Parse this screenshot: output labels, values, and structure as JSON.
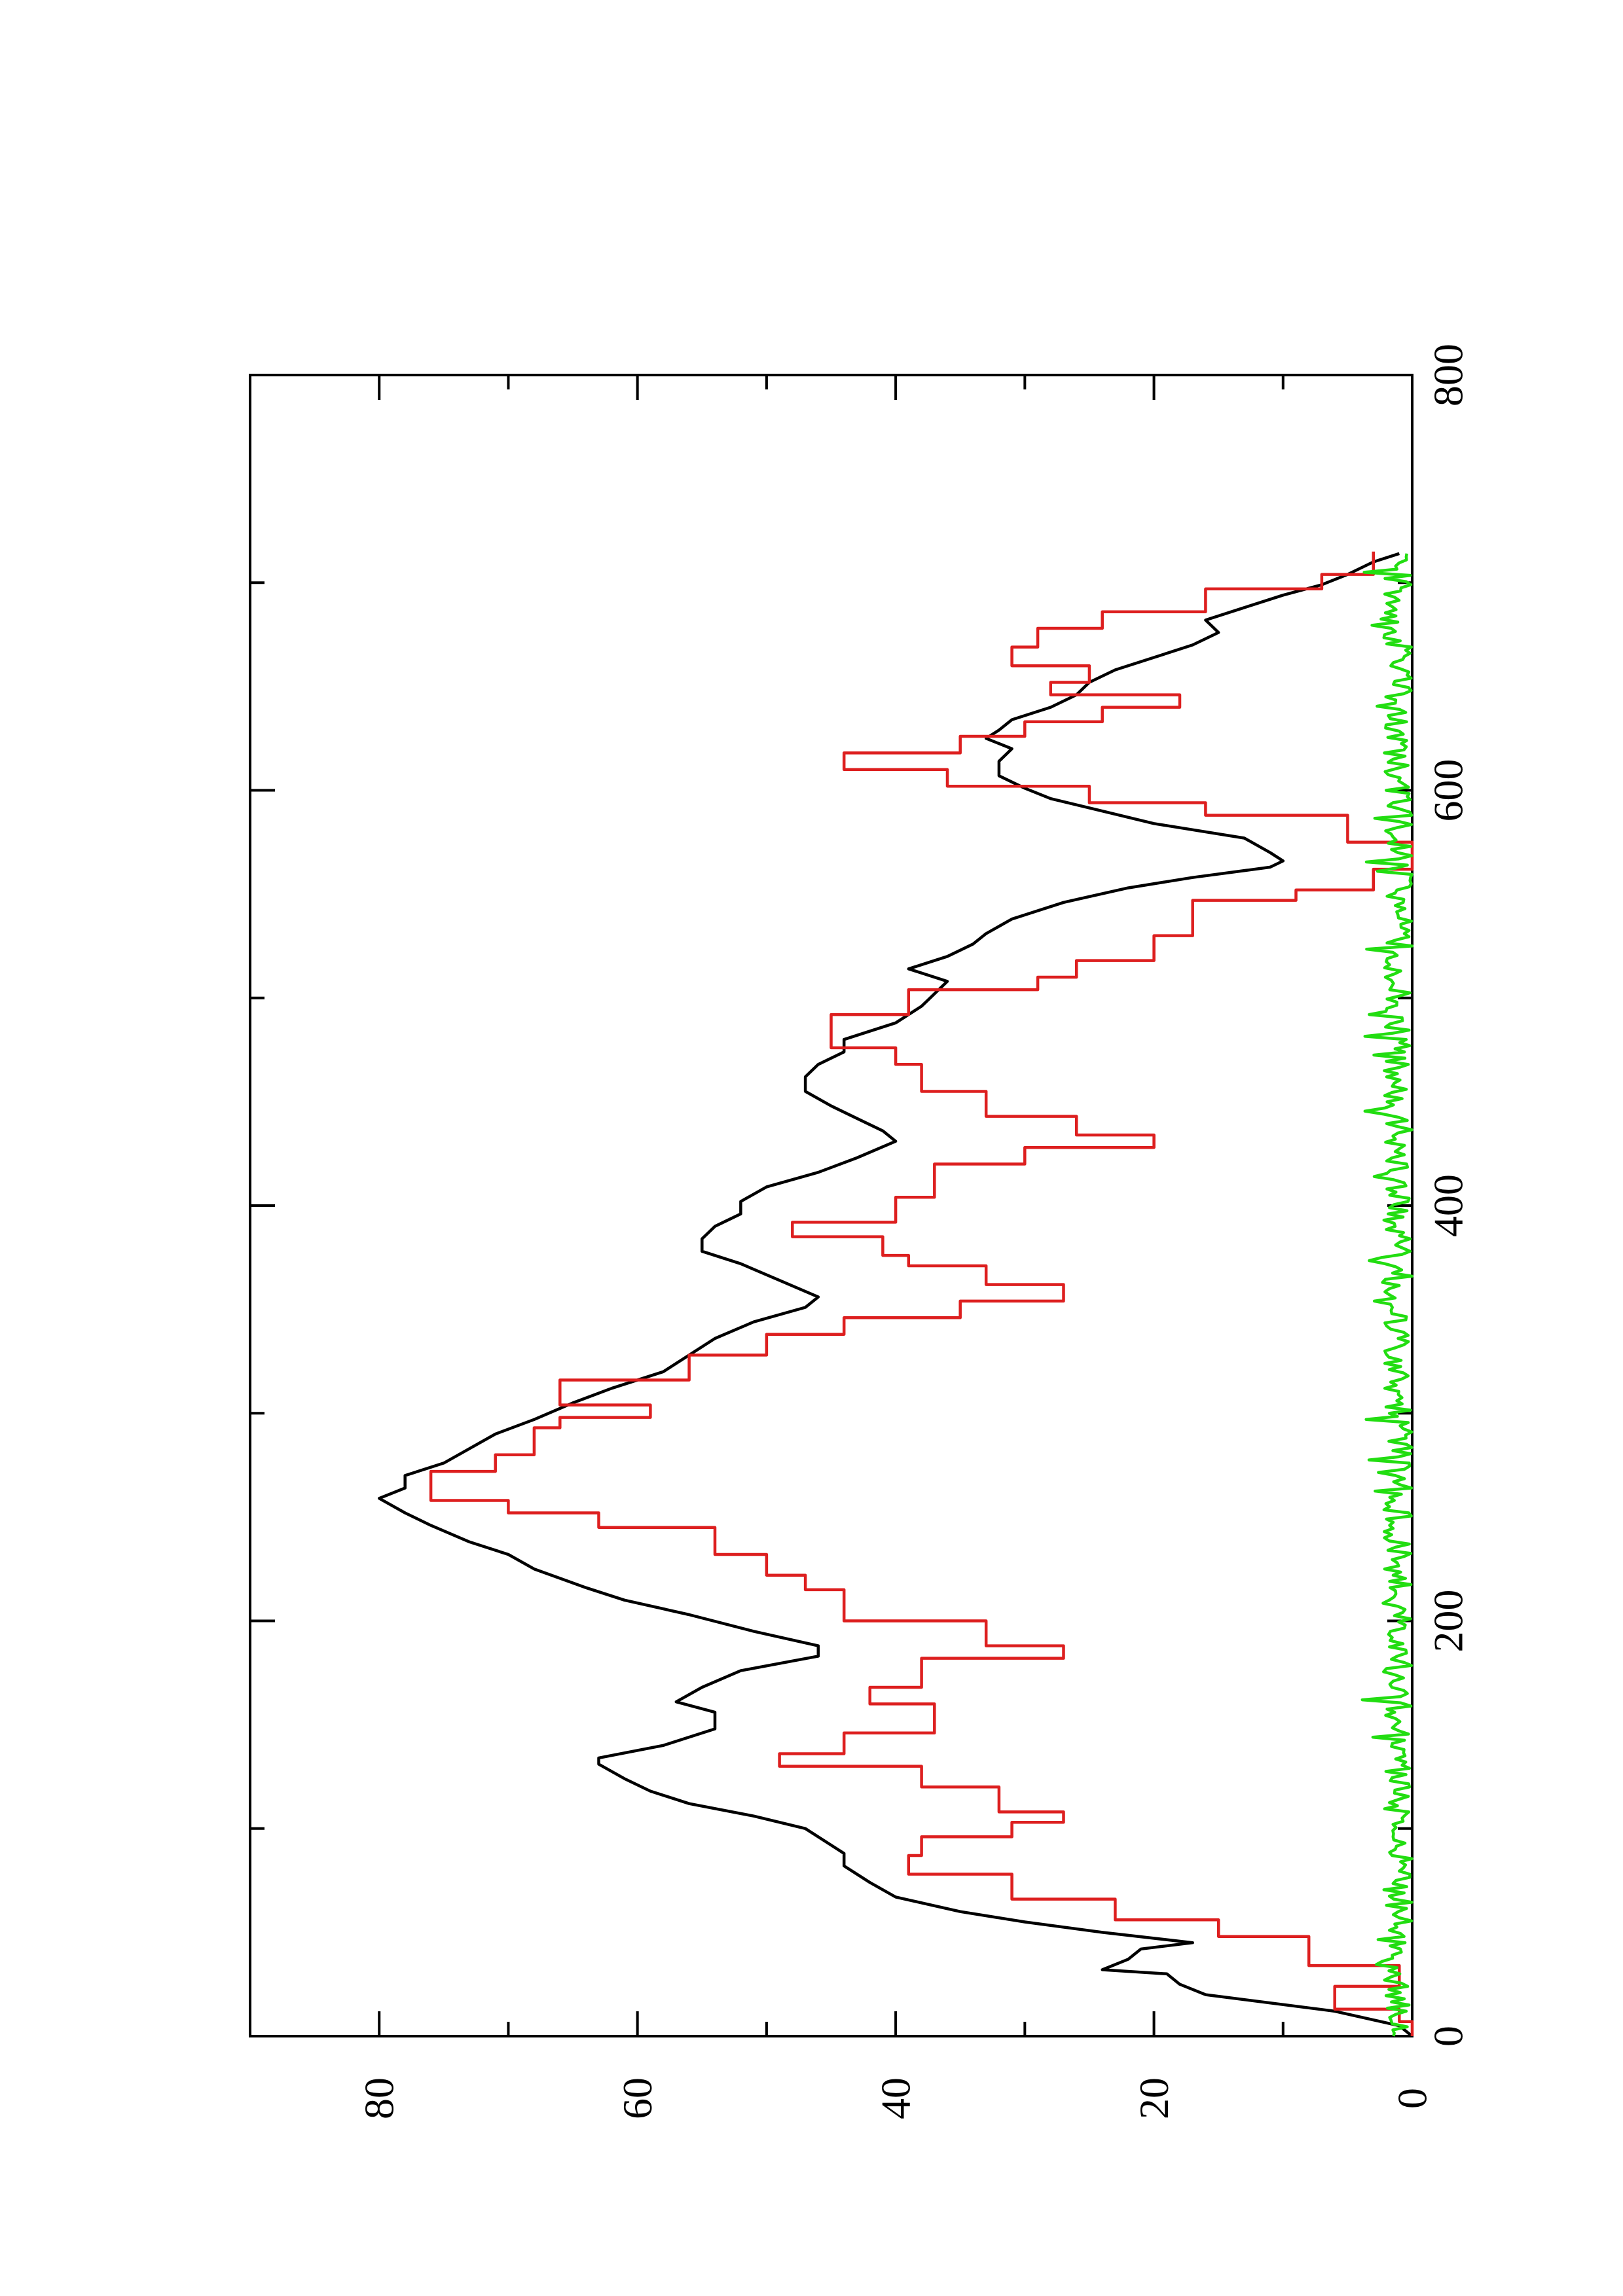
{
  "chart_data": {
    "type": "line",
    "orientation": "rotated-90-ccw",
    "title": "",
    "xlabel": "",
    "ylabel": "",
    "xlim": [
      0,
      800
    ],
    "ylim": [
      0,
      90
    ],
    "x_ticks": [
      0,
      200,
      400,
      600,
      800
    ],
    "x_minor_ticks": [
      100,
      300,
      500,
      700
    ],
    "y_ticks": [
      0,
      20,
      40,
      60,
      80
    ],
    "y_minor_ticks": [
      10,
      30,
      50,
      70
    ],
    "grid": false,
    "legend": "none",
    "series": [
      {
        "color": "#000000",
        "step": false,
        "points": [
          [
            0,
            0
          ],
          [
            5,
            1
          ],
          [
            12,
            6
          ],
          [
            20,
            16
          ],
          [
            25,
            18
          ],
          [
            30,
            19
          ],
          [
            32,
            24
          ],
          [
            37,
            22
          ],
          [
            42,
            21
          ],
          [
            45,
            17
          ],
          [
            50,
            24
          ],
          [
            55,
            30
          ],
          [
            60,
            35
          ],
          [
            67,
            40
          ],
          [
            74,
            42
          ],
          [
            82,
            44
          ],
          [
            88,
            44
          ],
          [
            92,
            45
          ],
          [
            100,
            47
          ],
          [
            106,
            51
          ],
          [
            112,
            56
          ],
          [
            118,
            59
          ],
          [
            124,
            61
          ],
          [
            131,
            63
          ],
          [
            134,
            63
          ],
          [
            140,
            58
          ],
          [
            148,
            54
          ],
          [
            156,
            54
          ],
          [
            161,
            57
          ],
          [
            168,
            55
          ],
          [
            176,
            52
          ],
          [
            183,
            46
          ],
          [
            188,
            46
          ],
          [
            195,
            51
          ],
          [
            203,
            56
          ],
          [
            210,
            61
          ],
          [
            216,
            64
          ],
          [
            225,
            68
          ],
          [
            232,
            70
          ],
          [
            238,
            73
          ],
          [
            246,
            76
          ],
          [
            252,
            78
          ],
          [
            259,
            80
          ],
          [
            264,
            78
          ],
          [
            270,
            78
          ],
          [
            276,
            75
          ],
          [
            283,
            73
          ],
          [
            290,
            71
          ],
          [
            297,
            68
          ],
          [
            305,
            65
          ],
          [
            312,
            62
          ],
          [
            320,
            58
          ],
          [
            328,
            56
          ],
          [
            336,
            54
          ],
          [
            344,
            51
          ],
          [
            351,
            47
          ],
          [
            356,
            46
          ],
          [
            364,
            49
          ],
          [
            372,
            52
          ],
          [
            378,
            55
          ],
          [
            384,
            55
          ],
          [
            390,
            54
          ],
          [
            396,
            52
          ],
          [
            402,
            52
          ],
          [
            409,
            50
          ],
          [
            416,
            46
          ],
          [
            423,
            43
          ],
          [
            431,
            40
          ],
          [
            436,
            41
          ],
          [
            442,
            43
          ],
          [
            448,
            45
          ],
          [
            455,
            47
          ],
          [
            462,
            47
          ],
          [
            468,
            46
          ],
          [
            474,
            44
          ],
          [
            480,
            44
          ],
          [
            488,
            40
          ],
          [
            496,
            38
          ],
          [
            502,
            37
          ],
          [
            508,
            36
          ],
          [
            514,
            39
          ],
          [
            520,
            36
          ],
          [
            526,
            34
          ],
          [
            531,
            33
          ],
          [
            538,
            31
          ],
          [
            546,
            27
          ],
          [
            553,
            22
          ],
          [
            558,
            17
          ],
          [
            563,
            11
          ],
          [
            566,
            10
          ],
          [
            570,
            11
          ],
          [
            577,
            13
          ],
          [
            584,
            20
          ],
          [
            590,
            24
          ],
          [
            596,
            28
          ],
          [
            601,
            30
          ],
          [
            607,
            32
          ],
          [
            614,
            32
          ],
          [
            620,
            31
          ],
          [
            625,
            33
          ],
          [
            629,
            32
          ],
          [
            634,
            31
          ],
          [
            640,
            28
          ],
          [
            646,
            26
          ],
          [
            652,
            25
          ],
          [
            658,
            23
          ],
          [
            664,
            20
          ],
          [
            670,
            17
          ],
          [
            676,
            15
          ],
          [
            682,
            16
          ],
          [
            688,
            13
          ],
          [
            694,
            10
          ],
          [
            699,
            7
          ],
          [
            704,
            5
          ],
          [
            710,
            3
          ],
          [
            714,
            1
          ]
        ]
      },
      {
        "color": "#dd1f1f",
        "step": true,
        "points": [
          [
            0,
            0
          ],
          [
            7,
            0
          ],
          [
            7,
            1
          ],
          [
            13,
            1
          ],
          [
            13,
            6
          ],
          [
            24,
            6
          ],
          [
            24,
            1
          ],
          [
            34,
            1
          ],
          [
            34,
            8
          ],
          [
            48,
            8
          ],
          [
            48,
            15
          ],
          [
            56,
            15
          ],
          [
            56,
            23
          ],
          [
            66,
            23
          ],
          [
            66,
            31
          ],
          [
            78,
            31
          ],
          [
            78,
            39
          ],
          [
            87,
            39
          ],
          [
            87,
            38
          ],
          [
            96,
            38
          ],
          [
            96,
            31
          ],
          [
            103,
            31
          ],
          [
            103,
            27
          ],
          [
            108,
            27
          ],
          [
            108,
            32
          ],
          [
            120,
            32
          ],
          [
            120,
            38
          ],
          [
            130,
            38
          ],
          [
            130,
            49
          ],
          [
            136,
            49
          ],
          [
            136,
            44
          ],
          [
            146,
            44
          ],
          [
            146,
            37
          ],
          [
            160,
            37
          ],
          [
            160,
            42
          ],
          [
            168,
            42
          ],
          [
            168,
            38
          ],
          [
            182,
            38
          ],
          [
            182,
            27
          ],
          [
            188,
            27
          ],
          [
            188,
            33
          ],
          [
            200,
            33
          ],
          [
            200,
            44
          ],
          [
            215,
            44
          ],
          [
            215,
            47
          ],
          [
            222,
            47
          ],
          [
            222,
            50
          ],
          [
            232,
            50
          ],
          [
            232,
            54
          ],
          [
            245,
            54
          ],
          [
            245,
            63
          ],
          [
            252,
            63
          ],
          [
            252,
            70
          ],
          [
            258,
            70
          ],
          [
            258,
            76
          ],
          [
            272,
            76
          ],
          [
            272,
            71
          ],
          [
            280,
            71
          ],
          [
            280,
            68
          ],
          [
            293,
            68
          ],
          [
            293,
            66
          ],
          [
            298,
            66
          ],
          [
            298,
            59
          ],
          [
            304,
            59
          ],
          [
            304,
            66
          ],
          [
            316,
            66
          ],
          [
            316,
            56
          ],
          [
            328,
            56
          ],
          [
            328,
            50
          ],
          [
            338,
            50
          ],
          [
            338,
            44
          ],
          [
            346,
            44
          ],
          [
            346,
            35
          ],
          [
            354,
            35
          ],
          [
            354,
            27
          ],
          [
            362,
            27
          ],
          [
            362,
            33
          ],
          [
            371,
            33
          ],
          [
            371,
            39
          ],
          [
            376,
            39
          ],
          [
            376,
            41
          ],
          [
            385,
            41
          ],
          [
            385,
            48
          ],
          [
            392,
            48
          ],
          [
            392,
            40
          ],
          [
            404,
            40
          ],
          [
            404,
            37
          ],
          [
            420,
            37
          ],
          [
            420,
            30
          ],
          [
            428,
            30
          ],
          [
            428,
            20
          ],
          [
            434,
            20
          ],
          [
            434,
            26
          ],
          [
            443,
            26
          ],
          [
            443,
            33
          ],
          [
            455,
            33
          ],
          [
            455,
            38
          ],
          [
            468,
            38
          ],
          [
            468,
            40
          ],
          [
            476,
            40
          ],
          [
            476,
            45
          ],
          [
            492,
            45
          ],
          [
            492,
            39
          ],
          [
            504,
            39
          ],
          [
            504,
            29
          ],
          [
            510,
            29
          ],
          [
            510,
            26
          ],
          [
            518,
            26
          ],
          [
            518,
            20
          ],
          [
            530,
            20
          ],
          [
            530,
            17
          ],
          [
            547,
            17
          ],
          [
            547,
            9
          ],
          [
            552,
            9
          ],
          [
            552,
            3
          ],
          [
            562,
            3
          ],
          [
            562,
            0
          ],
          [
            575,
            0
          ],
          [
            575,
            5
          ],
          [
            588,
            5
          ],
          [
            588,
            16
          ],
          [
            594,
            16
          ],
          [
            594,
            25
          ],
          [
            602,
            25
          ],
          [
            602,
            36
          ],
          [
            610,
            36
          ],
          [
            610,
            44
          ],
          [
            618,
            44
          ],
          [
            618,
            35
          ],
          [
            626,
            35
          ],
          [
            626,
            30
          ],
          [
            633,
            30
          ],
          [
            633,
            24
          ],
          [
            640,
            24
          ],
          [
            640,
            18
          ],
          [
            646,
            18
          ],
          [
            646,
            28
          ],
          [
            652,
            28
          ],
          [
            652,
            25
          ],
          [
            660,
            25
          ],
          [
            660,
            31
          ],
          [
            669,
            31
          ],
          [
            669,
            29
          ],
          [
            678,
            29
          ],
          [
            678,
            24
          ],
          [
            686,
            24
          ],
          [
            686,
            16
          ],
          [
            697,
            16
          ],
          [
            697,
            7
          ],
          [
            704,
            7
          ],
          [
            704,
            3
          ],
          [
            715,
            3
          ]
        ]
      },
      {
        "color": "#22dd11",
        "step": false,
        "noise": true,
        "x_start": 0,
        "x_end": 715,
        "y_range": [
          0,
          4
        ]
      }
    ]
  }
}
